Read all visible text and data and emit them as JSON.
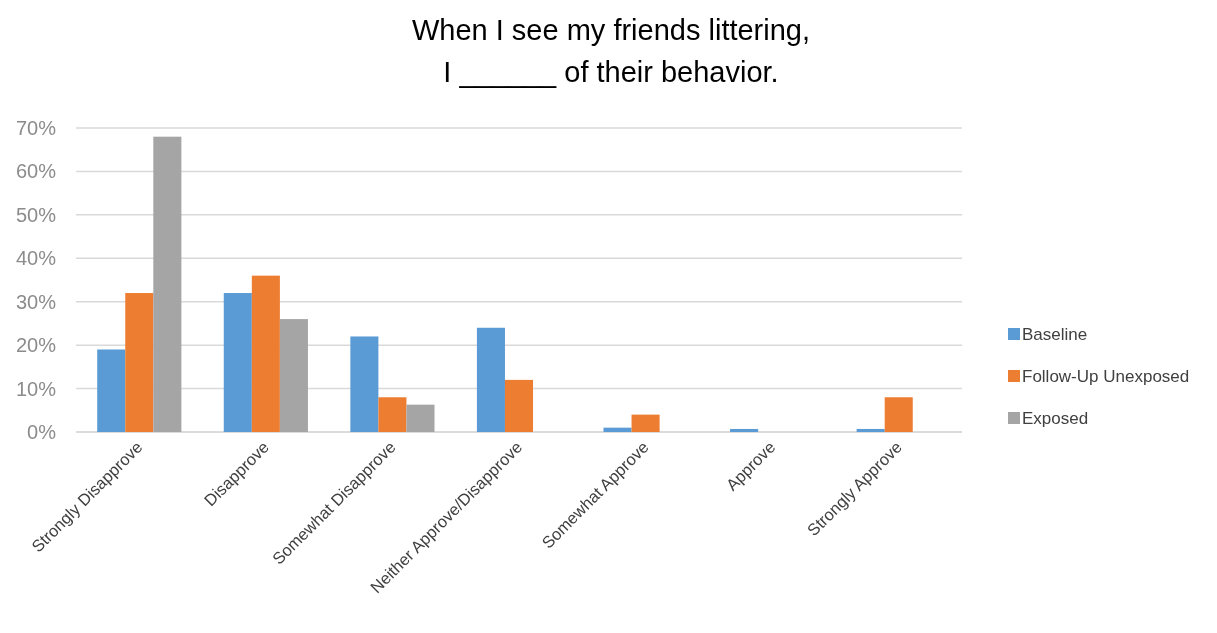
{
  "chart_data": {
    "type": "bar",
    "title": "When I see my friends littering,\nI ______ of their behavior.",
    "categories": [
      "Strongly Disapprove",
      "Disapprove",
      "Somewhat Disapprove",
      "Neither Approve/Disapprove",
      "Somewhat Approve",
      "Approve",
      "Strongly Approve"
    ],
    "series": [
      {
        "name": "Baseline",
        "color": "#5b9bd5",
        "values": [
          19,
          32,
          22,
          24,
          1,
          0.7,
          0.7
        ]
      },
      {
        "name": "Follow-Up Unexposed",
        "color": "#ed7d31",
        "values": [
          32,
          36,
          8,
          12,
          4,
          0,
          8
        ]
      },
      {
        "name": "Exposed",
        "color": "#a5a5a5",
        "values": [
          68,
          26,
          6.3,
          0,
          0,
          0,
          0
        ]
      }
    ],
    "ylim": [
      0,
      70
    ],
    "yticks": [
      {
        "value": 0,
        "label": "0%"
      },
      {
        "value": 10,
        "label": "10%"
      },
      {
        "value": 20,
        "label": "20%"
      },
      {
        "value": 30,
        "label": "30%"
      },
      {
        "value": 40,
        "label": "40%"
      },
      {
        "value": 50,
        "label": "50%"
      },
      {
        "value": 60,
        "label": "60%"
      },
      {
        "value": 70,
        "label": "70%"
      }
    ],
    "grid": true,
    "legend": "right"
  }
}
